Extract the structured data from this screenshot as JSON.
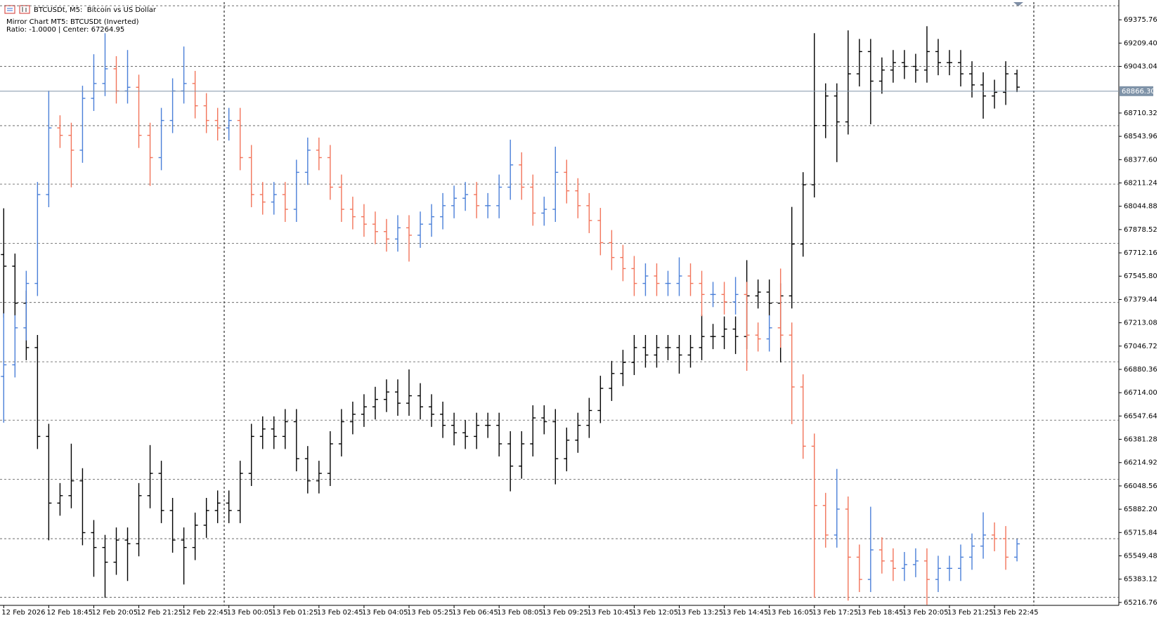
{
  "chart_data": {
    "type": "ohlc",
    "title": "BTCUSDt, M5:  Bitcoin vs US Dollar",
    "annotations": [
      "Mirror Chart MT5: BTCUSDt (Inverted)",
      "Ratio: -1.0000 | Center: 67264.95"
    ],
    "ylim": [
      65196,
      69502
    ],
    "yticks": [
      69375.76,
      {
        "value": 69209.4,
        "label": "69209.40"
      },
      69043.04,
      68710.32,
      68543.96,
      {
        "value": 68377.6,
        "label": "68377.60"
      },
      68211.24,
      68044.88,
      67878.52,
      67712.16,
      {
        "value": 67545.8,
        "label": "67545.80"
      },
      67379.44,
      67213.08,
      67046.72,
      66880.36,
      {
        "value": 66714,
        "label": "66714.00"
      },
      66547.64,
      66381.28,
      66214.92,
      66048.56,
      {
        "value": 65882.2,
        "label": "65882.20"
      },
      65715.84,
      65549.48,
      65383.12,
      65216.76
    ],
    "grid": true,
    "ygrid": [
      69476,
      69043,
      68620,
      68203,
      67780,
      67358,
      66935,
      66518,
      66095,
      65672,
      65254
    ],
    "price_line": {
      "value": 68866.3,
      "label": "68866.30",
      "color": "#7f93a8"
    },
    "xticks": [
      {
        "value": 0,
        "label": "12 Feb 2026"
      },
      {
        "value": 4,
        "label": "12 Feb 18:45"
      },
      {
        "value": 8,
        "label": "12 Feb 20:05"
      },
      {
        "value": 12,
        "label": "12 Feb 21:25"
      },
      {
        "value": 16,
        "label": "12 Feb 22:45"
      },
      {
        "value": 20,
        "label": "13 Feb 00:05"
      },
      {
        "value": 24,
        "label": "13 Feb 01:25"
      },
      {
        "value": 28,
        "label": "13 Feb 02:45"
      },
      {
        "value": 32,
        "label": "13 Feb 04:05"
      },
      {
        "value": 36,
        "label": "13 Feb 05:25"
      },
      {
        "value": 40,
        "label": "13 Feb 06:45"
      },
      {
        "value": 44,
        "label": "13 Feb 08:05"
      },
      {
        "value": 48,
        "label": "13 Feb 09:25"
      },
      {
        "value": 52,
        "label": "13 Feb 10:45"
      },
      {
        "value": 56,
        "label": "13 Feb 12:05"
      },
      {
        "value": 60,
        "label": "13 Feb 13:25"
      },
      {
        "value": 64,
        "label": "13 Feb 14:45"
      },
      {
        "value": 68,
        "label": "13 Feb 16:05"
      },
      {
        "value": 72,
        "label": "13 Feb 17:25"
      },
      {
        "value": 76,
        "label": "13 Feb 18:45"
      },
      {
        "value": 80,
        "label": "13 Feb 20:05"
      },
      {
        "value": 84,
        "label": "13 Feb 21:25"
      },
      {
        "value": 88,
        "label": "13 Feb 22:45"
      }
    ],
    "series": [
      {
        "color": "#000000",
        "open": [
          67700,
          67617,
          67353,
          67036,
          66402,
          65926,
          65979,
          66085,
          65715,
          65609,
          65504,
          65662,
          65636,
          65979,
          66138,
          65873,
          65662,
          65609,
          65768,
          65873,
          65926,
          65873,
          66138,
          66402,
          66455,
          66402,
          66507,
          66243,
          66085,
          66138,
          66349,
          66507,
          66560,
          66613,
          66666,
          66719,
          66639,
          66692,
          66613,
          66560,
          66481,
          66428,
          66402,
          66481,
          66481,
          66349,
          66190,
          66349,
          66534,
          66507,
          66243,
          66375,
          66481,
          66587,
          66745,
          66851,
          66930,
          67036,
          66983,
          67036,
          67036,
          66983,
          67036,
          67115,
          67115,
          67168,
          67115,
          67405,
          67432,
          67353,
          67405,
          67775,
          68198,
          68621,
          68832,
          68647,
          68990,
          69149,
          68938,
          69017,
          69070,
          69043,
          69017,
          69149,
          69070,
          69070,
          68990,
          68911,
          68832,
          68858,
          68990
        ],
        "high": [
          68030,
          67707,
          67443,
          67126,
          66492,
          66069,
          66350,
          66175,
          65805,
          65699,
          65752,
          65752,
          66069,
          66340,
          66228,
          65963,
          65752,
          65858,
          65963,
          66016,
          66016,
          66228,
          66492,
          66545,
          66545,
          66597,
          66597,
          66333,
          66228,
          66439,
          66597,
          66650,
          66703,
          66756,
          66809,
          66809,
          66880,
          66782,
          66703,
          66650,
          66571,
          66518,
          66571,
          66571,
          66571,
          66439,
          66439,
          66624,
          66624,
          66597,
          66465,
          66571,
          66677,
          66835,
          66941,
          67020,
          67126,
          67126,
          67126,
          67126,
          67126,
          67126,
          67270,
          67205,
          67258,
          67258,
          67660,
          67522,
          67522,
          67495,
          68040,
          68288,
          69280,
          68922,
          68922,
          69300,
          69239,
          69239,
          69107,
          69160,
          69160,
          69133,
          69330,
          69239,
          69160,
          69160,
          69080,
          69001,
          68948,
          69080,
          69020
        ],
        "low": [
          67250,
          67263,
          66946,
          66312,
          65660,
          65836,
          65889,
          65625,
          65400,
          65250,
          65414,
          65370,
          65546,
          65889,
          65783,
          65572,
          65345,
          65519,
          65678,
          65783,
          65783,
          65783,
          66048,
          66312,
          66312,
          66312,
          66153,
          65995,
          65995,
          66048,
          66259,
          66417,
          66470,
          66523,
          66576,
          66549,
          66549,
          66523,
          66470,
          66391,
          66338,
          66312,
          66312,
          66391,
          66259,
          66010,
          66100,
          66259,
          66417,
          66060,
          66153,
          66285,
          66391,
          66497,
          66655,
          66761,
          66840,
          66893,
          66893,
          66946,
          66850,
          66893,
          66946,
          67025,
          67025,
          66990,
          67025,
          67315,
          67263,
          66930,
          67315,
          67685,
          68108,
          68531,
          68360,
          68557,
          68900,
          68630,
          68848,
          68927,
          68953,
          68927,
          68927,
          68980,
          68980,
          68900,
          68821,
          68670,
          68742,
          68768,
          68860
        ],
        "close": [
          67617,
          67353,
          67036,
          66402,
          65926,
          65979,
          66085,
          65715,
          65609,
          65504,
          65662,
          65636,
          65979,
          66138,
          65873,
          65662,
          65609,
          65768,
          65873,
          65926,
          65873,
          66138,
          66402,
          66455,
          66402,
          66507,
          66243,
          66085,
          66138,
          66349,
          66507,
          66560,
          66613,
          66666,
          66719,
          66639,
          66692,
          66613,
          66560,
          66481,
          66428,
          66402,
          66481,
          66481,
          66349,
          66190,
          66349,
          66534,
          66507,
          66243,
          66375,
          66481,
          66587,
          66745,
          66851,
          66930,
          67036,
          66983,
          67036,
          67036,
          66983,
          67036,
          67115,
          67115,
          67168,
          67115,
          67405,
          67432,
          67353,
          67405,
          67775,
          68198,
          68621,
          68832,
          68647,
          68990,
          69149,
          68938,
          69017,
          69070,
          69043,
          69017,
          69149,
          69070,
          69070,
          68990,
          68911,
          68832,
          68858,
          68990,
          68895
        ]
      },
      {
        "up_color": "#4a7fd8",
        "down_color": "#f2745a",
        "open": [
          66830,
          66913,
          67177,
          67494,
          68128,
          68604,
          68551,
          68445,
          68815,
          68921,
          69026,
          68868,
          68894,
          68551,
          68392,
          68657,
          68868,
          68921,
          68762,
          68657,
          68604,
          68657,
          68392,
          68128,
          68075,
          68128,
          68023,
          68287,
          68445,
          68392,
          68181,
          68023,
          67970,
          67917,
          67864,
          67811,
          67891,
          67838,
          67917,
          67970,
          68049,
          68102,
          68128,
          68049,
          68049,
          68181,
          68340,
          68181,
          67996,
          68023,
          68287,
          68155,
          68049,
          67943,
          67785,
          67679,
          67600,
          67494,
          67547,
          67494,
          67494,
          67547,
          67494,
          67415,
          67415,
          67362,
          67415,
          67125,
          67098,
          67177,
          67125,
          66755,
          66332,
          65909,
          65698,
          65883,
          65540,
          65381,
          65592,
          65513,
          65460,
          65487,
          65513,
          65381,
          65460,
          65460,
          65540,
          65619,
          65698,
          65672,
          65540
        ],
        "high": [
          67280,
          67267,
          67584,
          68218,
          68870,
          68694,
          68641,
          68905,
          69130,
          69280,
          69116,
          69160,
          68984,
          68641,
          68747,
          68958,
          69185,
          69011,
          68852,
          68747,
          68747,
          68747,
          68482,
          68218,
          68218,
          68218,
          68377,
          68535,
          68535,
          68482,
          68271,
          68113,
          68060,
          68007,
          67954,
          67981,
          67981,
          68007,
          68060,
          68139,
          68192,
          68218,
          68218,
          68139,
          68271,
          68520,
          68430,
          68271,
          68113,
          68470,
          68377,
          68245,
          68139,
          68033,
          67875,
          67769,
          67690,
          67637,
          67637,
          67584,
          67680,
          67637,
          67584,
          67505,
          67505,
          67540,
          67505,
          67215,
          67267,
          67600,
          67215,
          66845,
          66422,
          65999,
          66170,
          65973,
          65630,
          65900,
          65682,
          65603,
          65577,
          65603,
          65603,
          65550,
          65550,
          65630,
          65709,
          65860,
          65788,
          65762,
          65670
        ],
        "low": [
          66500,
          66823,
          67087,
          67404,
          68038,
          68461,
          68180,
          68355,
          68725,
          68831,
          68778,
          68778,
          68461,
          68190,
          68302,
          68567,
          68778,
          68672,
          68567,
          68514,
          68514,
          68302,
          68038,
          67985,
          67985,
          67933,
          67933,
          68197,
          68302,
          68091,
          67933,
          67880,
          67827,
          67774,
          67721,
          67721,
          67650,
          67748,
          67827,
          67880,
          67959,
          68012,
          67959,
          67959,
          67959,
          68091,
          68091,
          67906,
          67906,
          67933,
          68065,
          67959,
          67853,
          67695,
          67589,
          67510,
          67404,
          67404,
          67404,
          67404,
          67404,
          67404,
          67260,
          67325,
          67272,
          67272,
          66870,
          67008,
          67008,
          67035,
          66490,
          66242,
          65250,
          65608,
          65608,
          65230,
          65291,
          65291,
          65423,
          65370,
          65370,
          65397,
          65200,
          65291,
          65370,
          65370,
          65450,
          65529,
          65582,
          65450,
          65510
        ],
        "close": [
          66913,
          67177,
          67494,
          68128,
          68604,
          68551,
          68445,
          68815,
          68921,
          69026,
          68868,
          68894,
          68551,
          68392,
          68657,
          68868,
          68921,
          68762,
          68657,
          68604,
          68657,
          68392,
          68128,
          68075,
          68128,
          68023,
          68287,
          68445,
          68392,
          68181,
          68023,
          67970,
          67917,
          67864,
          67811,
          67891,
          67838,
          67917,
          67970,
          68049,
          68102,
          68128,
          68049,
          68049,
          68181,
          68340,
          68181,
          67996,
          68023,
          68287,
          68155,
          68049,
          67943,
          67785,
          67679,
          67600,
          67494,
          67547,
          67494,
          67494,
          67547,
          67494,
          67415,
          67415,
          67362,
          67415,
          67125,
          67098,
          67177,
          67125,
          66755,
          66332,
          65909,
          65698,
          65883,
          65540,
          65381,
          65592,
          65513,
          65460,
          65487,
          65513,
          65381,
          65460,
          65460,
          65540,
          65619,
          65698,
          65672,
          65540,
          65635
        ]
      }
    ]
  }
}
